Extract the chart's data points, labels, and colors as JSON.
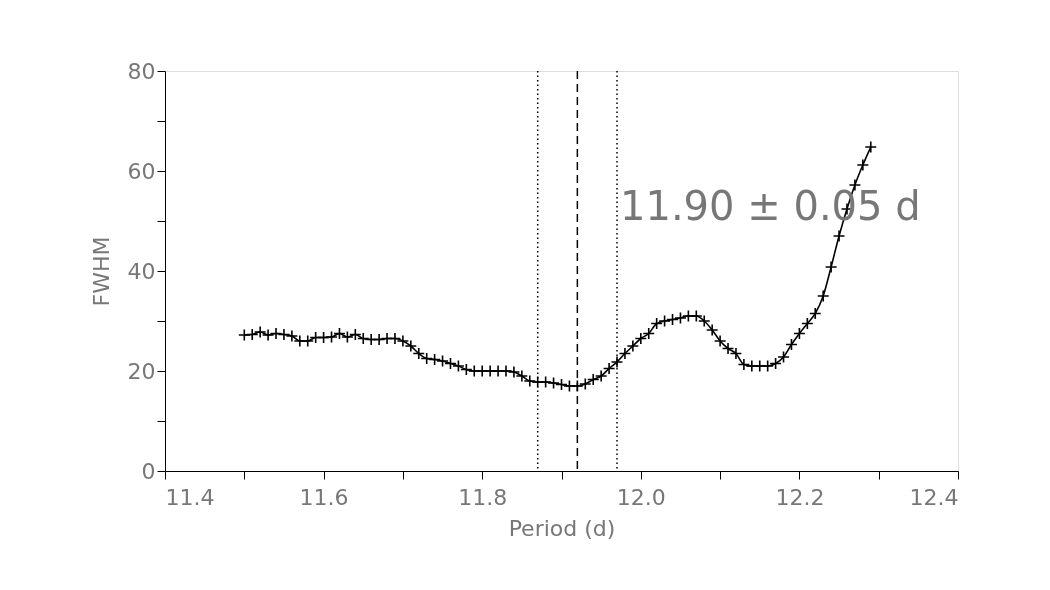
{
  "chart_data": {
    "type": "line",
    "xlabel": "Period (d)",
    "ylabel": "FWHM",
    "x": [
      11.5,
      11.51,
      11.52,
      11.53,
      11.54,
      11.55,
      11.56,
      11.57,
      11.58,
      11.59,
      11.6,
      11.61,
      11.62,
      11.63,
      11.64,
      11.65,
      11.66,
      11.67,
      11.68,
      11.69,
      11.7,
      11.71,
      11.72,
      11.73,
      11.74,
      11.75,
      11.76,
      11.77,
      11.78,
      11.79,
      11.8,
      11.81,
      11.82,
      11.83,
      11.84,
      11.85,
      11.86,
      11.87,
      11.88,
      11.89,
      11.9,
      11.91,
      11.92,
      11.93,
      11.94,
      11.95,
      11.96,
      11.97,
      11.98,
      11.99,
      12.0,
      12.01,
      12.02,
      12.03,
      12.04,
      12.05,
      12.06,
      12.07,
      12.08,
      12.09,
      12.1,
      12.11,
      12.12,
      12.13,
      12.14,
      12.15,
      12.16,
      12.17,
      12.18,
      12.19,
      12.2,
      12.21,
      12.22,
      12.23,
      12.24,
      12.25,
      12.26,
      12.27,
      12.28,
      12.29
    ],
    "series": [
      {
        "color": "#000000",
        "values": [
          27.2,
          27.3,
          27.8,
          27.2,
          27.5,
          27.3,
          27.0,
          26.0,
          26.0,
          26.7,
          26.7,
          26.8,
          27.5,
          26.8,
          27.3,
          26.5,
          26.3,
          26.3,
          26.5,
          26.5,
          26.0,
          25.0,
          23.5,
          22.5,
          22.3,
          22.0,
          21.5,
          21.0,
          20.3,
          20.0,
          20.0,
          20.0,
          20.0,
          20.0,
          19.8,
          19.0,
          18.0,
          17.8,
          17.8,
          17.6,
          17.3,
          17.0,
          17.0,
          17.4,
          18.3,
          19.0,
          20.5,
          21.8,
          23.5,
          25.0,
          26.5,
          27.5,
          29.5,
          30.0,
          30.3,
          30.6,
          31.0,
          31.0,
          30.0,
          28.2,
          26.0,
          24.5,
          23.5,
          21.3,
          21.0,
          21.0,
          21.0,
          21.5,
          22.8,
          25.3,
          27.5,
          29.5,
          31.5,
          35.0,
          40.8,
          47.0,
          52.4,
          57.2,
          61.2,
          64.8
        ]
      }
    ],
    "xlim": [
      11.4,
      12.4
    ],
    "ylim": [
      0,
      80
    ],
    "xticks": [
      11.4,
      {
        "value": 11.5,
        "label": null
      },
      11.6,
      {
        "value": 11.7,
        "label": null
      },
      11.8,
      {
        "value": 11.9,
        "label": null
      },
      {
        "value": 12.0,
        "label": "12.0"
      },
      {
        "value": 12.1,
        "label": null
      },
      12.2,
      {
        "value": 12.3,
        "label": null
      },
      12.4
    ],
    "yticks": [
      0,
      {
        "value": 10,
        "label": null
      },
      20,
      {
        "value": 30,
        "label": null
      },
      40,
      {
        "value": 50,
        "label": null
      },
      60,
      {
        "value": 70,
        "label": null
      },
      80
    ],
    "ref_lines": [
      {
        "axis": "x",
        "value": 11.87,
        "line_style": "dotted"
      },
      {
        "axis": "x",
        "value": 11.92,
        "line_style": "dashed"
      },
      {
        "axis": "x",
        "value": 11.97,
        "line_style": "dotted"
      }
    ],
    "annotations": [
      "11.90 ± 0.05 d"
    ],
    "marker": "cross",
    "line_style": "solid",
    "grid": false
  }
}
